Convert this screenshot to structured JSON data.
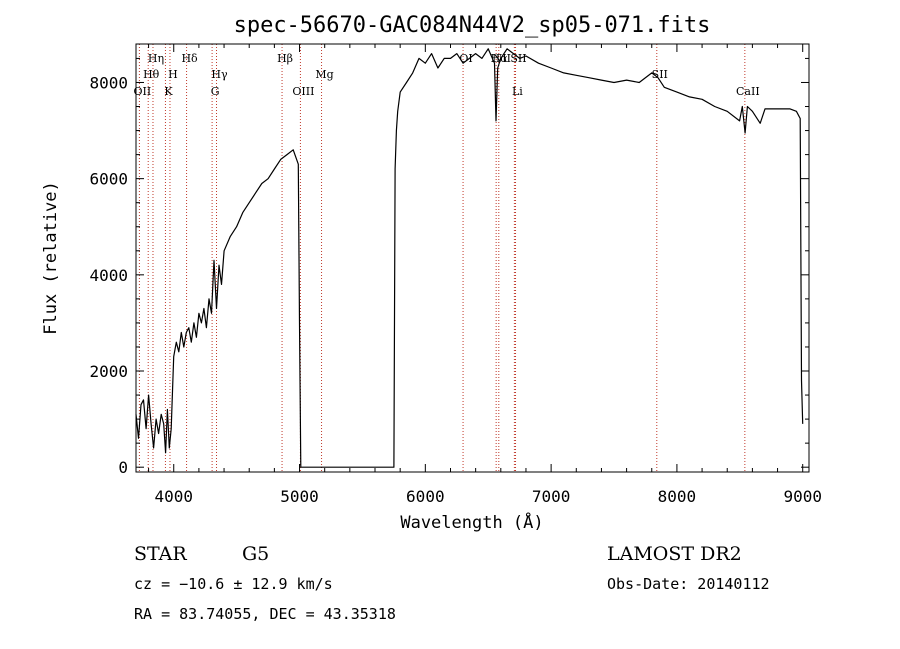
{
  "chart_data": {
    "type": "line",
    "title": "spec-56670-GAC084N44V2_sp05-071.fits",
    "xlabel": "Wavelength (Å)",
    "ylabel": "Flux (relative)",
    "xlim": [
      3700,
      9050
    ],
    "ylim": [
      -100,
      8800
    ],
    "x_ticks": [
      4000,
      5000,
      6000,
      7000,
      8000,
      9000
    ],
    "y_ticks": [
      0,
      2000,
      4000,
      6000,
      8000
    ],
    "grid": false,
    "series": [
      {
        "x": [
          3700,
          3720,
          3740,
          3760,
          3780,
          3800,
          3820,
          3840,
          3860,
          3880,
          3900,
          3920,
          3935,
          3950,
          3965,
          3980,
          4000,
          4020,
          4040,
          4060,
          4080,
          4100,
          4120,
          4140,
          4160,
          4180,
          4200,
          4220,
          4240,
          4260,
          4280,
          4300,
          4320,
          4340,
          4360,
          4380,
          4400,
          4450,
          4500,
          4550,
          4600,
          4650,
          4700,
          4750,
          4800,
          4850,
          4900,
          4950,
          4990,
          5000,
          5010,
          5030,
          5400,
          5600,
          5750,
          5760,
          5770,
          5780,
          5800,
          5850,
          5900,
          5950,
          6000,
          6050,
          6100,
          6150,
          6200,
          6250,
          6300,
          6350,
          6400,
          6450,
          6500,
          6550,
          6562,
          6575,
          6600,
          6650,
          6700,
          6750,
          6800,
          6900,
          7000,
          7100,
          7200,
          7300,
          7400,
          7500,
          7600,
          7700,
          7800,
          7850,
          7900,
          8000,
          8100,
          8200,
          8300,
          8400,
          8498,
          8520,
          8542,
          8560,
          8600,
          8662,
          8700,
          8800,
          8900,
          8950,
          8980,
          8990,
          9000
        ],
        "values": [
          1100,
          600,
          1300,
          1400,
          800,
          1500,
          900,
          400,
          1000,
          700,
          1100,
          900,
          300,
          1200,
          400,
          800,
          2300,
          2600,
          2400,
          2800,
          2500,
          2800,
          2900,
          2600,
          3000,
          2700,
          3200,
          3000,
          3300,
          2900,
          3500,
          3200,
          4300,
          3300,
          4200,
          3800,
          4500,
          4800,
          5000,
          5300,
          5500,
          5700,
          5900,
          6000,
          6200,
          6400,
          6500,
          6600,
          6300,
          3000,
          0,
          0,
          0,
          0,
          0,
          6200,
          7000,
          7400,
          7800,
          8000,
          8200,
          8500,
          8400,
          8600,
          8300,
          8500,
          8500,
          8600,
          8400,
          8500,
          8600,
          8500,
          8700,
          8400,
          7200,
          8300,
          8500,
          8700,
          8600,
          8500,
          8550,
          8400,
          8300,
          8200,
          8150,
          8100,
          8050,
          8000,
          8050,
          8000,
          8200,
          8100,
          7900,
          7800,
          7700,
          7650,
          7500,
          7400,
          7200,
          7500,
          6950,
          7500,
          7400,
          7150,
          7450,
          7450,
          7450,
          7400,
          7250,
          1800,
          900
        ]
      }
    ],
    "spectral_lines": [
      {
        "label": "Hη",
        "x": 3835,
        "row": 0
      },
      {
        "label": "Hθ",
        "x": 3797,
        "row": 1
      },
      {
        "label": "H",
        "x": 3970,
        "row": 1
      },
      {
        "label": "Hδ",
        "x": 4102,
        "row": 0
      },
      {
        "label": "Hγ",
        "x": 4340,
        "row": 1
      },
      {
        "label": "OII",
        "x": 3727,
        "row": 2
      },
      {
        "label": "K",
        "x": 3934,
        "row": 2
      },
      {
        "label": "G",
        "x": 4305,
        "row": 2
      },
      {
        "label": "Hβ",
        "x": 4861,
        "row": 0
      },
      {
        "label": "OIII",
        "x": 5007,
        "row": 2
      },
      {
        "label": "Mg",
        "x": 5175,
        "row": 1
      },
      {
        "label": "OI",
        "x": 6300,
        "row": 0
      },
      {
        "label": "Hα",
        "x": 6563,
        "row": 0
      },
      {
        "label": "NII",
        "x": 6584,
        "row": 0
      },
      {
        "label": "SII",
        "x": 6717,
        "row": 0
      },
      {
        "label": "Li",
        "x": 6708,
        "row": 2
      },
      {
        "label": "SII",
        "x": 7840,
        "row": 1
      },
      {
        "label": "CaII",
        "x": 8540,
        "row": 2
      }
    ]
  },
  "info": {
    "object_type": "STAR",
    "subclass": "G5",
    "survey": "LAMOST DR2",
    "cz": "cz = −10.6 ± 12.9 km/s",
    "obs_date": "Obs-Date: 20140112",
    "coords": "RA =  83.74055, DEC =  43.35318"
  }
}
